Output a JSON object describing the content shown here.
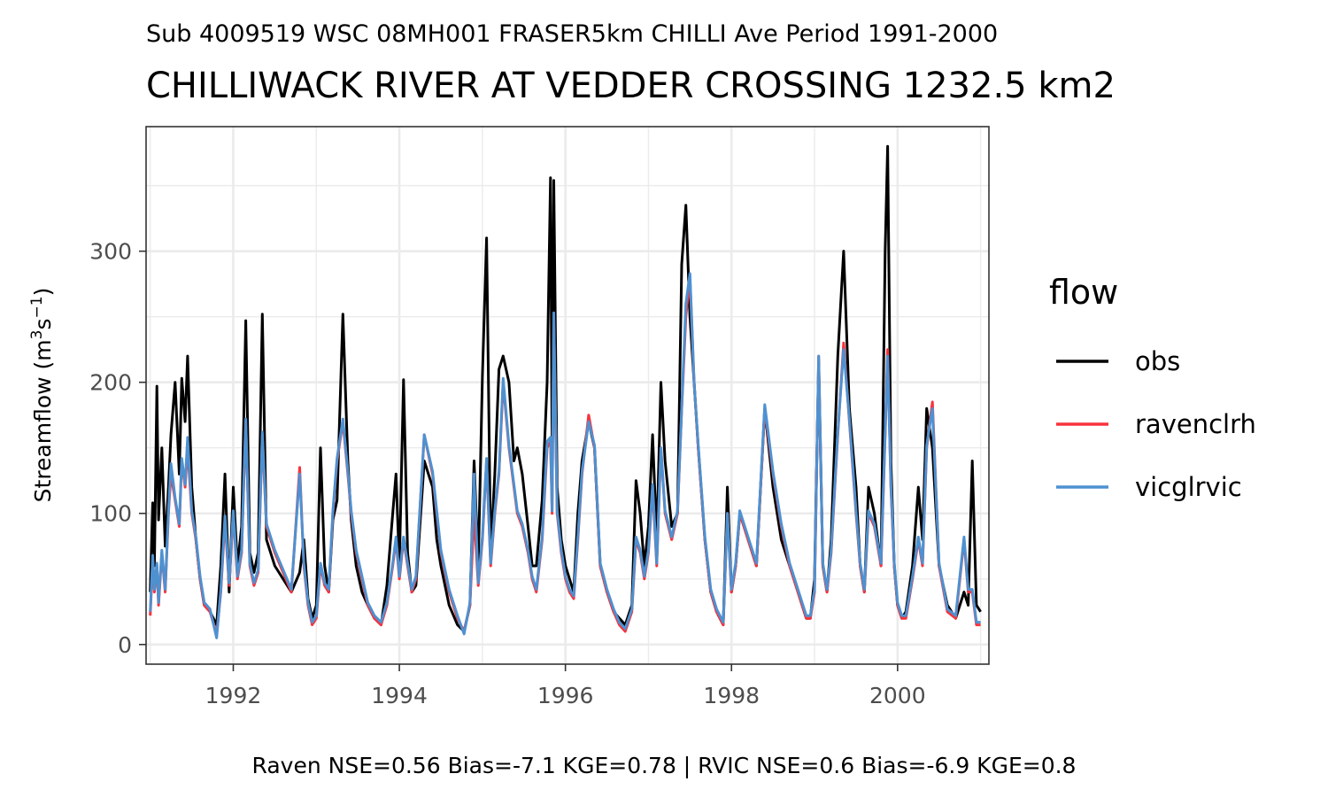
{
  "chart_data": {
    "type": "line",
    "subtitle": "Sub 4009519 WSC 08MH001 FRASER5km CHILLI Ave Period 1991-2000",
    "title": "CHILLIWACK RIVER AT VEDDER CROSSING 1232.5 km2",
    "ylabel_main": "Streamflow (m",
    "ylabel_sup1": "3",
    "ylabel_mid": "s",
    "ylabel_sup2": "−1",
    "ylabel_end": ")",
    "caption": "Raven NSE=0.56 Bias=-7.1 KGE=0.78 | RVIC NSE=0.6 Bias=-6.9 KGE=0.8",
    "xlim": [
      1990.95,
      2001.1
    ],
    "ylim": [
      -15,
      395
    ],
    "x_ticks": [
      1992,
      1994,
      1996,
      1998,
      2000
    ],
    "x_tick_labels": [
      "1992",
      "1994",
      "1996",
      "1998",
      "2000"
    ],
    "y_ticks": [
      0,
      100,
      200,
      300
    ],
    "y_tick_labels": [
      "0",
      "100",
      "200",
      "300"
    ],
    "grid": true,
    "legend": {
      "title": "flow",
      "position": "right",
      "items": [
        {
          "label": "obs",
          "color": "#000000"
        },
        {
          "label": "ravenclrh",
          "color": "#f8333c"
        },
        {
          "label": "vicglrvic",
          "color": "#4e91d1"
        }
      ]
    },
    "series": [
      {
        "name": "obs",
        "color": "#000000",
        "x": [
          1991.0,
          1991.03,
          1991.05,
          1991.08,
          1991.1,
          1991.14,
          1991.18,
          1991.22,
          1991.25,
          1991.3,
          1991.35,
          1991.38,
          1991.42,
          1991.45,
          1991.5,
          1991.55,
          1991.6,
          1991.65,
          1991.72,
          1991.8,
          1991.85,
          1991.9,
          1991.95,
          1992.0,
          1992.05,
          1992.1,
          1992.15,
          1992.2,
          1992.25,
          1992.3,
          1992.35,
          1992.4,
          1992.5,
          1992.6,
          1992.7,
          1992.8,
          1992.85,
          1992.9,
          1992.95,
          1993.0,
          1993.05,
          1993.1,
          1993.15,
          1993.2,
          1993.25,
          1993.32,
          1993.38,
          1993.42,
          1993.48,
          1993.55,
          1993.62,
          1993.7,
          1993.78,
          1993.85,
          1993.92,
          1993.96,
          1994.0,
          1994.05,
          1994.1,
          1994.15,
          1994.2,
          1994.3,
          1994.4,
          1994.45,
          1994.5,
          1994.6,
          1994.7,
          1994.78,
          1994.85,
          1994.9,
          1994.95,
          1995.0,
          1995.05,
          1995.1,
          1995.15,
          1995.2,
          1995.25,
          1995.32,
          1995.38,
          1995.42,
          1995.48,
          1995.55,
          1995.6,
          1995.65,
          1995.72,
          1995.78,
          1995.82,
          1995.84,
          1995.86,
          1995.9,
          1995.95,
          1996.0,
          1996.05,
          1996.1,
          1996.15,
          1996.2,
          1996.28,
          1996.35,
          1996.42,
          1996.5,
          1996.58,
          1996.65,
          1996.72,
          1996.8,
          1996.85,
          1996.9,
          1996.95,
          1997.0,
          1997.05,
          1997.1,
          1997.15,
          1997.2,
          1997.28,
          1997.35,
          1997.4,
          1997.45,
          1997.5,
          1997.55,
          1997.6,
          1997.68,
          1997.75,
          1997.82,
          1997.9,
          1997.95,
          1998.0,
          1998.05,
          1998.1,
          1998.2,
          1998.3,
          1998.4,
          1998.5,
          1998.6,
          1998.7,
          1998.8,
          1998.85,
          1998.9,
          1998.95,
          1999.0,
          1999.05,
          1999.1,
          1999.15,
          1999.2,
          1999.28,
          1999.35,
          1999.42,
          1999.5,
          1999.55,
          1999.6,
          1999.65,
          1999.72,
          1999.8,
          1999.85,
          1999.88,
          1999.92,
          1999.96,
          2000.0,
          2000.05,
          2000.1,
          2000.18,
          2000.25,
          2000.3,
          2000.35,
          2000.42,
          2000.5,
          2000.6,
          2000.7,
          2000.8,
          2000.85,
          2000.9,
          2000.95,
          2001.0
        ],
        "y": [
          40,
          108,
          60,
          197,
          95,
          150,
          75,
          120,
          160,
          200,
          130,
          203,
          170,
          220,
          120,
          80,
          50,
          30,
          25,
          15,
          60,
          130,
          40,
          120,
          60,
          90,
          247,
          70,
          55,
          70,
          252,
          80,
          60,
          50,
          40,
          55,
          80,
          35,
          20,
          30,
          150,
          60,
          40,
          95,
          110,
          252,
          140,
          95,
          60,
          40,
          30,
          20,
          15,
          45,
          100,
          130,
          60,
          202,
          70,
          40,
          45,
          140,
          120,
          80,
          60,
          30,
          15,
          10,
          30,
          140,
          60,
          205,
          310,
          70,
          130,
          210,
          220,
          200,
          140,
          150,
          130,
          90,
          60,
          60,
          110,
          200,
          356,
          150,
          354,
          120,
          80,
          60,
          50,
          40,
          100,
          140,
          170,
          150,
          60,
          40,
          25,
          20,
          15,
          30,
          125,
          100,
          60,
          90,
          160,
          80,
          200,
          140,
          90,
          100,
          290,
          335,
          250,
          200,
          150,
          80,
          40,
          25,
          15,
          120,
          40,
          60,
          100,
          80,
          60,
          180,
          120,
          80,
          60,
          40,
          30,
          20,
          20,
          50,
          215,
          60,
          40,
          80,
          220,
          300,
          180,
          120,
          60,
          40,
          120,
          100,
          60,
          300,
          380,
          140,
          60,
          30,
          20,
          25,
          60,
          120,
          80,
          180,
          150,
          60,
          30,
          20,
          40,
          30,
          140,
          30,
          25
        ]
      },
      {
        "name": "ravenclrh",
        "color": "#f8333c",
        "x": [
          1991.0,
          1991.03,
          1991.05,
          1991.08,
          1991.1,
          1991.14,
          1991.18,
          1991.22,
          1991.25,
          1991.3,
          1991.35,
          1991.38,
          1991.42,
          1991.45,
          1991.5,
          1991.55,
          1991.6,
          1991.65,
          1991.72,
          1991.8,
          1991.85,
          1991.9,
          1991.95,
          1992.0,
          1992.05,
          1992.1,
          1992.15,
          1992.2,
          1992.25,
          1992.3,
          1992.35,
          1992.4,
          1992.5,
          1992.6,
          1992.7,
          1992.8,
          1992.85,
          1992.9,
          1992.95,
          1993.0,
          1993.05,
          1993.1,
          1993.15,
          1993.2,
          1993.25,
          1993.32,
          1993.38,
          1993.42,
          1993.48,
          1993.55,
          1993.62,
          1993.7,
          1993.78,
          1993.85,
          1993.92,
          1993.96,
          1994.0,
          1994.05,
          1994.1,
          1994.15,
          1994.2,
          1994.3,
          1994.4,
          1994.45,
          1994.5,
          1994.6,
          1994.7,
          1994.78,
          1994.85,
          1994.9,
          1994.95,
          1995.0,
          1995.05,
          1995.1,
          1995.15,
          1995.2,
          1995.25,
          1995.32,
          1995.38,
          1995.42,
          1995.48,
          1995.55,
          1995.6,
          1995.65,
          1995.72,
          1995.78,
          1995.82,
          1995.84,
          1995.86,
          1995.9,
          1995.95,
          1996.0,
          1996.05,
          1996.1,
          1996.15,
          1996.2,
          1996.28,
          1996.35,
          1996.42,
          1996.5,
          1996.58,
          1996.65,
          1996.72,
          1996.8,
          1996.85,
          1996.9,
          1996.95,
          1997.0,
          1997.05,
          1997.1,
          1997.15,
          1997.2,
          1997.28,
          1997.35,
          1997.4,
          1997.45,
          1997.5,
          1997.55,
          1997.6,
          1997.68,
          1997.75,
          1997.82,
          1997.9,
          1997.95,
          1998.0,
          1998.05,
          1998.1,
          1998.2,
          1998.3,
          1998.4,
          1998.5,
          1998.6,
          1998.7,
          1998.8,
          1998.85,
          1998.9,
          1998.95,
          1999.0,
          1999.05,
          1999.1,
          1999.15,
          1999.2,
          1999.28,
          1999.35,
          1999.42,
          1999.5,
          1999.55,
          1999.6,
          1999.65,
          1999.72,
          1999.8,
          1999.85,
          1999.88,
          1999.92,
          1999.96,
          2000.0,
          2000.05,
          2000.1,
          2000.18,
          2000.25,
          2000.3,
          2000.35,
          2000.42,
          2000.5,
          2000.6,
          2000.7,
          2000.8,
          2000.85,
          2000.9,
          2000.95,
          2001.0
        ],
        "y": [
          22,
          65,
          40,
          60,
          30,
          70,
          40,
          100,
          130,
          110,
          90,
          140,
          120,
          150,
          100,
          80,
          50,
          30,
          25,
          8,
          40,
          95,
          45,
          100,
          50,
          70,
          170,
          60,
          45,
          55,
          160,
          90,
          70,
          55,
          40,
          135,
          60,
          30,
          15,
          20,
          60,
          45,
          40,
          100,
          140,
          170,
          130,
          100,
          70,
          50,
          30,
          20,
          15,
          30,
          60,
          80,
          50,
          80,
          60,
          40,
          50,
          160,
          130,
          100,
          70,
          40,
          20,
          10,
          30,
          100,
          45,
          80,
          140,
          60,
          100,
          130,
          200,
          150,
          120,
          100,
          90,
          70,
          50,
          40,
          80,
          150,
          155,
          100,
          250,
          100,
          70,
          50,
          40,
          35,
          80,
          130,
          175,
          150,
          60,
          40,
          25,
          15,
          10,
          25,
          80,
          70,
          50,
          70,
          120,
          60,
          150,
          100,
          80,
          100,
          180,
          250,
          280,
          200,
          150,
          80,
          40,
          25,
          15,
          100,
          40,
          60,
          100,
          80,
          60,
          180,
          130,
          90,
          60,
          40,
          30,
          20,
          20,
          40,
          220,
          60,
          40,
          70,
          160,
          230,
          170,
          100,
          60,
          40,
          100,
          90,
          60,
          160,
          225,
          120,
          60,
          30,
          20,
          20,
          50,
          80,
          60,
          150,
          185,
          60,
          25,
          20,
          80,
          40,
          40,
          15,
          15
        ]
      },
      {
        "name": "vicglrvic",
        "color": "#4e91d1",
        "x": [
          1991.0,
          1991.03,
          1991.05,
          1991.08,
          1991.1,
          1991.14,
          1991.18,
          1991.22,
          1991.25,
          1991.3,
          1991.35,
          1991.38,
          1991.42,
          1991.45,
          1991.5,
          1991.55,
          1991.6,
          1991.65,
          1991.72,
          1991.8,
          1991.85,
          1991.9,
          1991.95,
          1992.0,
          1992.05,
          1992.1,
          1992.15,
          1992.2,
          1992.25,
          1992.3,
          1992.35,
          1992.4,
          1992.5,
          1992.6,
          1992.7,
          1992.8,
          1992.85,
          1992.9,
          1992.95,
          1993.0,
          1993.05,
          1993.1,
          1993.15,
          1993.2,
          1993.25,
          1993.32,
          1993.38,
          1993.42,
          1993.48,
          1993.55,
          1993.62,
          1993.7,
          1993.78,
          1993.85,
          1993.92,
          1993.96,
          1994.0,
          1994.05,
          1994.1,
          1994.15,
          1994.2,
          1994.3,
          1994.4,
          1994.45,
          1994.5,
          1994.6,
          1994.7,
          1994.78,
          1994.85,
          1994.9,
          1994.95,
          1995.0,
          1995.05,
          1995.1,
          1995.15,
          1995.2,
          1995.25,
          1995.32,
          1995.38,
          1995.42,
          1995.48,
          1995.55,
          1995.6,
          1995.65,
          1995.72,
          1995.78,
          1995.82,
          1995.84,
          1995.86,
          1995.9,
          1995.95,
          1996.0,
          1996.05,
          1996.1,
          1996.15,
          1996.2,
          1996.28,
          1996.35,
          1996.42,
          1996.5,
          1996.58,
          1996.65,
          1996.72,
          1996.8,
          1996.85,
          1996.9,
          1996.95,
          1997.0,
          1997.05,
          1997.1,
          1997.15,
          1997.2,
          1997.28,
          1997.35,
          1997.4,
          1997.45,
          1997.5,
          1997.55,
          1997.6,
          1997.68,
          1997.75,
          1997.82,
          1997.9,
          1997.95,
          1998.0,
          1998.05,
          1998.1,
          1998.2,
          1998.3,
          1998.4,
          1998.5,
          1998.6,
          1998.7,
          1998.8,
          1998.85,
          1998.9,
          1998.95,
          1999.0,
          1999.05,
          1999.1,
          1999.15,
          1999.2,
          1999.28,
          1999.35,
          1999.42,
          1999.5,
          1999.55,
          1999.6,
          1999.65,
          1999.72,
          1999.8,
          1999.85,
          1999.88,
          1999.92,
          1999.96,
          2000.0,
          2000.05,
          2000.1,
          2000.18,
          2000.25,
          2000.3,
          2000.35,
          2000.42,
          2000.5,
          2000.6,
          2000.7,
          2000.8,
          2000.85,
          2000.9,
          2000.95,
          2001.0
        ],
        "y": [
          25,
          68,
          42,
          62,
          32,
          72,
          42,
          102,
          138,
          112,
          92,
          142,
          122,
          158,
          102,
          82,
          52,
          32,
          27,
          5,
          42,
          98,
          47,
          102,
          52,
          72,
          172,
          62,
          47,
          57,
          162,
          92,
          72,
          57,
          42,
          130,
          62,
          32,
          17,
          22,
          62,
          47,
          42,
          102,
          142,
          172,
          132,
          102,
          72,
          52,
          32,
          22,
          17,
          32,
          62,
          82,
          52,
          82,
          62,
          42,
          52,
          160,
          132,
          102,
          72,
          42,
          22,
          8,
          32,
          130,
          47,
          82,
          142,
          62,
          102,
          132,
          203,
          152,
          122,
          102,
          92,
          72,
          52,
          42,
          82,
          155,
          158,
          102,
          253,
          102,
          72,
          52,
          42,
          37,
          82,
          132,
          170,
          152,
          62,
          42,
          27,
          17,
          12,
          27,
          82,
          72,
          52,
          72,
          122,
          62,
          150,
          102,
          82,
          102,
          180,
          260,
          283,
          200,
          152,
          82,
          42,
          27,
          17,
          100,
          42,
          62,
          102,
          82,
          62,
          183,
          132,
          92,
          62,
          42,
          32,
          22,
          22,
          42,
          220,
          62,
          42,
          72,
          162,
          225,
          172,
          102,
          62,
          42,
          102,
          92,
          62,
          162,
          220,
          122,
          62,
          32,
          22,
          22,
          52,
          82,
          62,
          152,
          180,
          62,
          27,
          22,
          82,
          42,
          42,
          17,
          17
        ]
      }
    ]
  }
}
